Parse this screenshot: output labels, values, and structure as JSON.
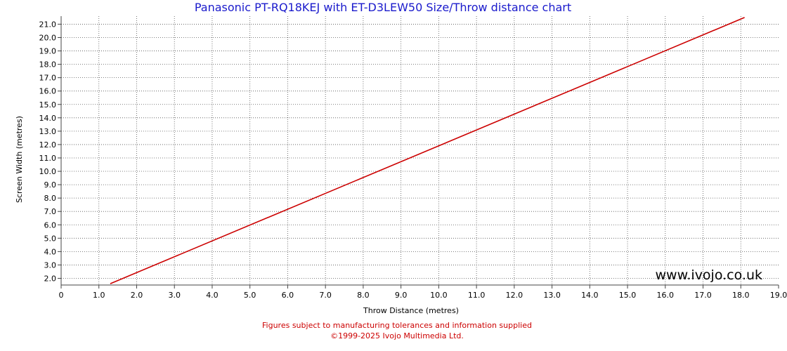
{
  "chart_data": {
    "type": "line",
    "title": "Panasonic PT-RQ18KEJ with ET-D3LEW50 Size/Throw distance chart",
    "xlabel": "Throw Distance (metres)",
    "ylabel": "Screen Width (metres)",
    "xlim": [
      0,
      19
    ],
    "ylim": [
      1.5,
      21.6
    ],
    "xticks": [
      "0",
      "1.0",
      "2.0",
      "3.0",
      "4.0",
      "5.0",
      "6.0",
      "7.0",
      "8.0",
      "9.0",
      "10.0",
      "11.0",
      "12.0",
      "13.0",
      "14.0",
      "15.0",
      "16.0",
      "17.0",
      "18.0",
      "19.0"
    ],
    "yticks": [
      "2.0",
      "3.0",
      "4.0",
      "5.0",
      "6.0",
      "7.0",
      "8.0",
      "9.0",
      "10.0",
      "11.0",
      "12.0",
      "13.0",
      "14.0",
      "15.0",
      "16.0",
      "17.0",
      "18.0",
      "19.0",
      "20.0",
      "21.0"
    ],
    "grid": true,
    "series": [
      {
        "x": [
          1.3,
          18.1
        ],
        "y": [
          1.6,
          21.5
        ],
        "color": "#cc0000"
      }
    ],
    "watermark": "www.ivojo.co.uk"
  },
  "footer": {
    "line1": "Figures subject to manufacturing tolerances and information supplied",
    "line2": "©1999-2025 Ivojo Multimedia Ltd."
  }
}
